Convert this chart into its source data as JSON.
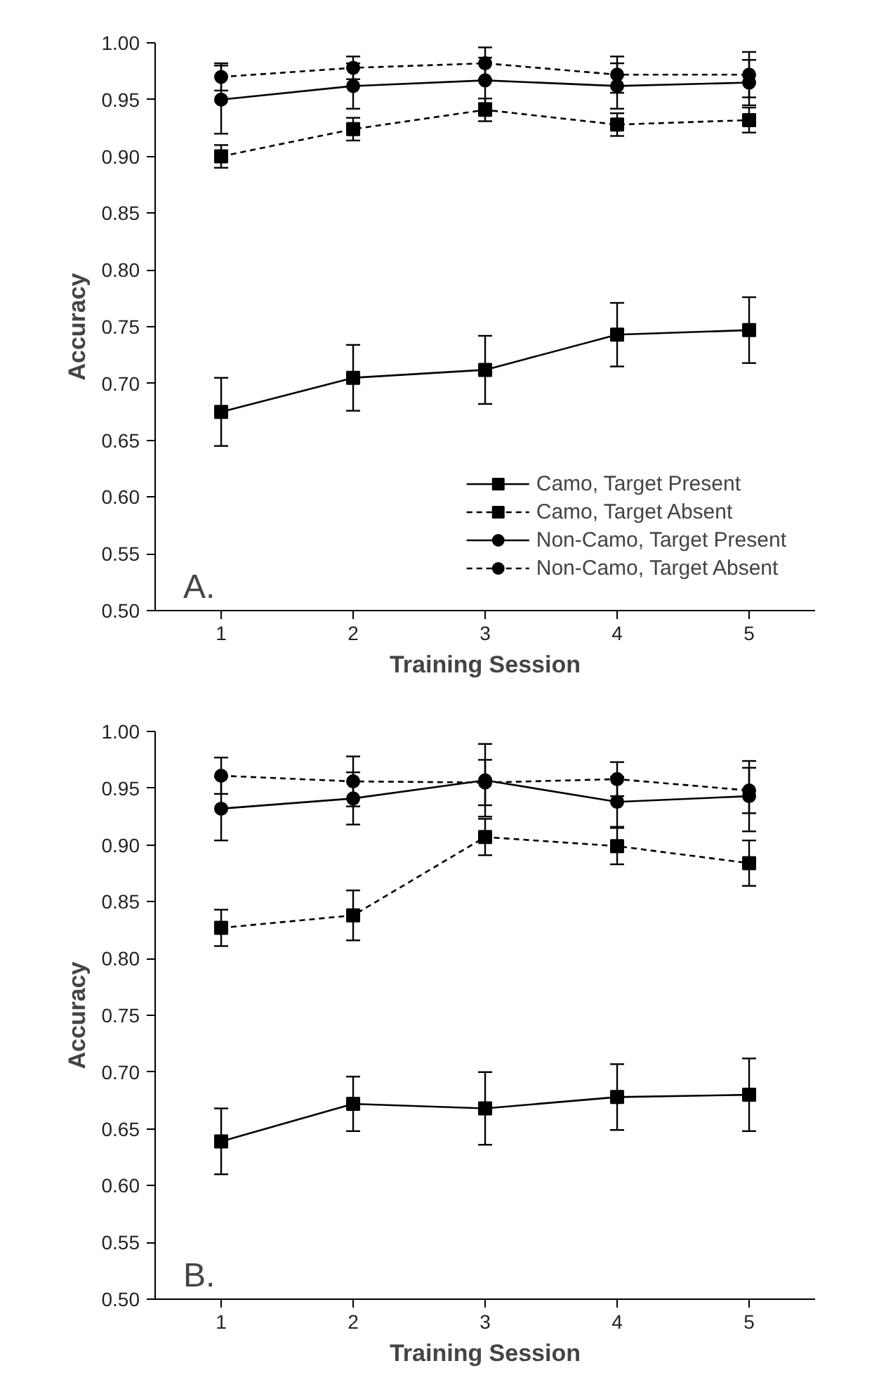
{
  "chart_data": [
    {
      "type": "line",
      "annotations": [
        "A."
      ],
      "xlabel": "Training Session",
      "ylabel": "Accuracy",
      "x": [
        1,
        2,
        3,
        4,
        5
      ],
      "xlim": [
        0.5,
        5.5
      ],
      "xticks": [
        1,
        2,
        3,
        4,
        5
      ],
      "ylim": [
        0.5,
        1.0
      ],
      "yticks": [
        {
          "value": 0.5,
          "label": "0.50"
        },
        {
          "value": 0.55,
          "label": "0.55"
        },
        {
          "value": 0.6,
          "label": "0.60"
        },
        {
          "value": 0.65,
          "label": "0.65"
        },
        {
          "value": 0.7,
          "label": "0.70"
        },
        {
          "value": 0.75,
          "label": "0.75"
        },
        {
          "value": 0.8,
          "label": "0.80"
        },
        {
          "value": 0.85,
          "label": "0.85"
        },
        {
          "value": 0.9,
          "label": "0.90"
        },
        {
          "value": 0.95,
          "label": "0.95"
        },
        {
          "value": 1.0,
          "label": "1.00"
        }
      ],
      "grid": false,
      "legend": "bottom right",
      "series": [
        {
          "name": "Camo, Target Present",
          "color": "#000000",
          "marker": "square",
          "line_style": "solid",
          "values": [
            0.675,
            0.705,
            0.712,
            0.743,
            0.747
          ],
          "errors": [
            0.03,
            0.029,
            0.03,
            0.028,
            0.029
          ]
        },
        {
          "name": "Camo, Target Absent",
          "color": "#000000",
          "marker": "square",
          "line_style": "dashed",
          "values": [
            0.9,
            0.924,
            0.941,
            0.928,
            0.932
          ],
          "errors": [
            0.01,
            0.01,
            0.01,
            0.01,
            0.011
          ]
        },
        {
          "name": "Non-Camo, Target Present",
          "color": "#000000",
          "marker": "circle",
          "line_style": "solid",
          "values": [
            0.95,
            0.962,
            0.967,
            0.962,
            0.965
          ],
          "errors": [
            0.03,
            0.02,
            0.02,
            0.02,
            0.02
          ]
        },
        {
          "name": "Non-Camo, Target Absent",
          "color": "#000000",
          "marker": "circle",
          "line_style": "dashed",
          "values": [
            0.97,
            0.978,
            0.982,
            0.972,
            0.972
          ],
          "errors": [
            0.012,
            0.01,
            0.014,
            0.016,
            0.02
          ]
        }
      ]
    },
    {
      "type": "line",
      "annotations": [
        "B."
      ],
      "xlabel": "Training Session",
      "ylabel": "Accuracy",
      "x": [
        1,
        2,
        3,
        4,
        5
      ],
      "xlim": [
        0.5,
        5.5
      ],
      "xticks": [
        1,
        2,
        3,
        4,
        5
      ],
      "ylim": [
        0.5,
        1.0
      ],
      "yticks": [
        {
          "value": 0.5,
          "label": "0.50"
        },
        {
          "value": 0.55,
          "label": "0.55"
        },
        {
          "value": 0.6,
          "label": "0.60"
        },
        {
          "value": 0.65,
          "label": "0.65"
        },
        {
          "value": 0.7,
          "label": "0.70"
        },
        {
          "value": 0.75,
          "label": "0.75"
        },
        {
          "value": 0.8,
          "label": "0.80"
        },
        {
          "value": 0.85,
          "label": "0.85"
        },
        {
          "value": 0.9,
          "label": "0.90"
        },
        {
          "value": 0.95,
          "label": "0.95"
        },
        {
          "value": 1.0,
          "label": "1.00"
        }
      ],
      "grid": false,
      "legend": false,
      "series": [
        {
          "color": "#000000",
          "marker": "square",
          "line_style": "solid",
          "values": [
            0.639,
            0.672,
            0.668,
            0.678,
            0.68
          ],
          "errors": [
            0.029,
            0.024,
            0.032,
            0.029,
            0.032
          ]
        },
        {
          "color": "#000000",
          "marker": "square",
          "line_style": "dashed",
          "values": [
            0.827,
            0.838,
            0.907,
            0.899,
            0.884
          ],
          "errors": [
            0.016,
            0.022,
            0.016,
            0.016,
            0.02
          ]
        },
        {
          "color": "#000000",
          "marker": "circle",
          "line_style": "solid",
          "values": [
            0.932,
            0.941,
            0.957,
            0.938,
            0.943
          ],
          "errors": [
            0.028,
            0.023,
            0.032,
            0.022,
            0.031
          ]
        },
        {
          "color": "#000000",
          "marker": "circle",
          "line_style": "dashed",
          "values": [
            0.961,
            0.956,
            0.955,
            0.958,
            0.948
          ],
          "errors": [
            0.016,
            0.022,
            0.02,
            0.015,
            0.02
          ]
        }
      ]
    }
  ]
}
